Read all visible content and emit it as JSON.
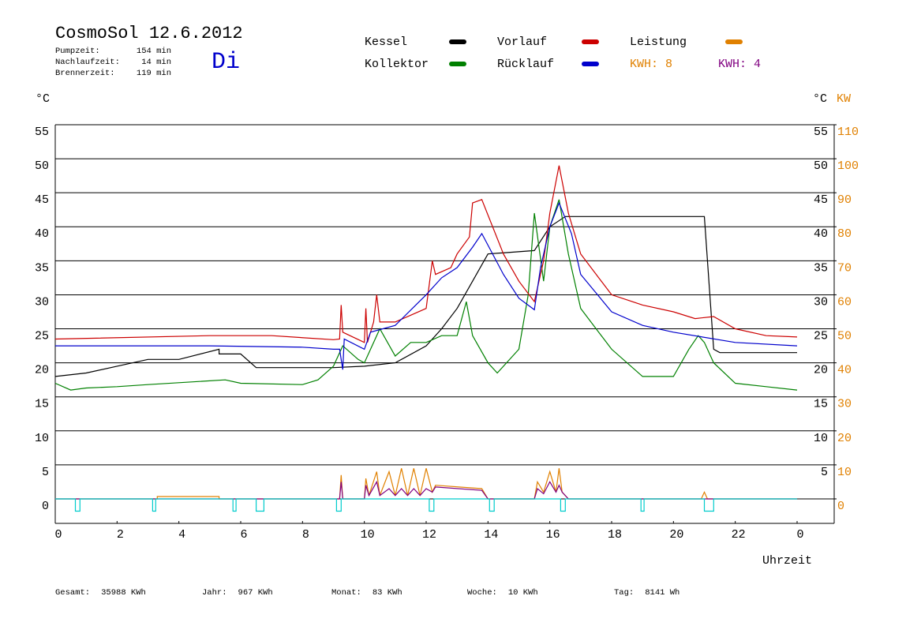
{
  "chart_data": {
    "type": "line",
    "title": "CosmoSol 12.6.2012",
    "info": [
      {
        "label": "Pumpzeit:",
        "value": "154 min"
      },
      {
        "label": "Nachlaufzeit:",
        "value": "14 min"
      },
      {
        "label": "Brennerzeit:",
        "value": "119 min"
      }
    ],
    "day": "Di",
    "y_unit": "°C",
    "y2_unit_c": "°C",
    "y2_unit": "KW",
    "x_label": "Uhrzeit",
    "kwh_labels": [
      {
        "text": "KWH: 8",
        "color": "#e08000"
      },
      {
        "text": "KWH: 4",
        "color": "#800080"
      }
    ],
    "xlim": [
      0,
      25.2
    ],
    "xticks": [
      0,
      2,
      4,
      6,
      8,
      10,
      12,
      14,
      16,
      18,
      20,
      22,
      {
        "value": 24,
        "label": "0"
      }
    ],
    "ylim": [
      -3.6,
      55
    ],
    "yticks": [
      0,
      5,
      10,
      15,
      20,
      25,
      30,
      35,
      40,
      45,
      50,
      55
    ],
    "y2ticks_c": [
      5,
      10,
      15,
      20,
      25,
      30,
      35,
      40,
      45,
      50,
      55
    ],
    "y2lim": [
      -7.2,
      110
    ],
    "y2ticks": [
      0,
      10,
      20,
      30,
      40,
      50,
      60,
      70,
      80,
      90,
      100,
      110
    ],
    "series": [
      {
        "name": "Kessel",
        "color": "#000000",
        "x": [
          0,
          1,
          2,
          3,
          4,
          5.3,
          5.3,
          6,
          6.5,
          9,
          10,
          11,
          12,
          12.5,
          13,
          13.5,
          14,
          15.5,
          16,
          16.5,
          21,
          21.3,
          21.5,
          24
        ],
        "values": [
          18,
          18.5,
          19.5,
          20.5,
          20.5,
          22,
          21.3,
          21.3,
          19.3,
          19.3,
          19.5,
          20,
          22.5,
          25,
          28,
          32,
          36,
          36.5,
          40,
          41.5,
          41.5,
          22,
          21.5,
          21.5
        ]
      },
      {
        "name": "Kollektor",
        "color": "#008000",
        "x": [
          0,
          0.5,
          1,
          2,
          3,
          5.5,
          6,
          8,
          8.5,
          9,
          9.3,
          9.8,
          10,
          10.5,
          11,
          11.5,
          12,
          12.5,
          13,
          13.3,
          13.5,
          14,
          14.3,
          15,
          15.3,
          15.5,
          15.8,
          16,
          16.3,
          16.6,
          17,
          18,
          19,
          20,
          20.5,
          20.8,
          21,
          21.3,
          22,
          23,
          24
        ],
        "values": [
          17,
          16,
          16.3,
          16.5,
          16.8,
          17.5,
          17,
          16.8,
          17.5,
          19.5,
          22.5,
          20.5,
          20,
          25,
          21,
          23,
          23,
          24,
          24,
          29,
          24,
          20,
          18.5,
          22,
          30,
          42,
          32,
          40,
          44,
          36,
          28,
          22,
          18,
          18,
          22,
          24,
          23,
          20,
          17,
          16.5,
          16
        ]
      },
      {
        "name": "Vorlauf",
        "color": "#cc0000",
        "x": [
          0,
          5,
          7,
          9,
          9.2,
          9.25,
          9.3,
          10,
          10.05,
          10.1,
          10.3,
          10.4,
          10.5,
          11,
          11.5,
          12,
          12.2,
          12.3,
          12.8,
          13,
          13.4,
          13.5,
          13.8,
          14.5,
          15,
          15.5,
          15.8,
          16,
          16.3,
          16.6,
          17,
          18,
          19,
          20,
          20.7,
          21.3,
          22,
          23,
          24
        ],
        "values": [
          23.5,
          24,
          24,
          23.4,
          23.5,
          28.5,
          24.5,
          23,
          28,
          23,
          26,
          30,
          26,
          26,
          27,
          28,
          35,
          33,
          34,
          36,
          38.5,
          43.5,
          44,
          36,
          32,
          29,
          35,
          42,
          49,
          42,
          36,
          30,
          28.5,
          27.5,
          26.5,
          26.8,
          25,
          24,
          23.8
        ]
      },
      {
        "name": "Rücklauf",
        "color": "#0000cc",
        "x": [
          0,
          5,
          8,
          9,
          9.2,
          9.3,
          9.35,
          10,
          10.2,
          11,
          12,
          12.5,
          13,
          13.5,
          13.8,
          14.5,
          15,
          15.5,
          15.7,
          16,
          16.3,
          16.7,
          17,
          18,
          19,
          20,
          22,
          24
        ],
        "values": [
          22.5,
          22.5,
          22.3,
          22,
          22,
          19,
          23.5,
          22,
          24.5,
          25.5,
          30,
          32.5,
          34,
          37,
          39,
          33,
          29.5,
          27.8,
          34,
          40,
          43.5,
          39,
          33,
          27.5,
          25.5,
          24.5,
          23,
          22.5
        ]
      },
      {
        "name": "Leistung",
        "color": "#e08000",
        "axis": "y2",
        "x": [
          0,
          3.3,
          3.3,
          5.3,
          5.3,
          9.2,
          9.25,
          9.3,
          10,
          10.05,
          10.15,
          10.4,
          10.5,
          10.8,
          11,
          11.2,
          11.4,
          11.6,
          11.8,
          12,
          12.2,
          12.3,
          13.8,
          14,
          15.5,
          15.6,
          15.8,
          16,
          16.2,
          16.3,
          16.4,
          16.6,
          20.9,
          21,
          21.1,
          24
        ],
        "values": [
          0,
          0,
          0.7,
          0.7,
          0,
          0,
          7,
          0,
          0,
          6,
          1,
          8,
          1,
          8,
          1,
          9,
          1,
          9,
          1,
          9,
          2,
          4,
          3,
          0,
          0,
          5,
          2,
          8,
          2,
          9,
          2,
          0,
          0,
          2,
          0,
          0
        ]
      },
      {
        "color": "#800080",
        "axis": "y2",
        "x": [
          0,
          9.2,
          9.25,
          9.3,
          10,
          10.05,
          10.15,
          10.4,
          10.5,
          10.8,
          11,
          11.2,
          11.4,
          11.6,
          11.8,
          12,
          12.2,
          12.3,
          13.8,
          14,
          15.5,
          15.6,
          15.8,
          16,
          16.2,
          16.3,
          16.4,
          16.6,
          24
        ],
        "values": [
          0,
          0,
          5,
          0,
          0,
          4,
          1,
          5,
          1,
          3,
          1,
          3,
          1,
          3,
          1,
          3,
          2,
          3.5,
          2.5,
          0,
          0,
          3,
          1.5,
          5,
          2,
          4,
          2,
          0,
          0
        ]
      },
      {
        "color": "#00cccc",
        "x": [
          0,
          0.65,
          0.65,
          0.8,
          0.8,
          3.15,
          3.15,
          3.25,
          3.25,
          5.75,
          5.75,
          5.85,
          5.85,
          6.5,
          6.5,
          6.75,
          6.75,
          9.1,
          9.1,
          9.25,
          9.25,
          12.1,
          12.1,
          12.25,
          12.25,
          14.05,
          14.05,
          14.2,
          14.2,
          16.35,
          16.35,
          16.5,
          16.5,
          18.95,
          18.95,
          19.05,
          19.05,
          21.0,
          21.0,
          21.3,
          21.3,
          24
        ],
        "values": [
          0,
          0,
          -1.8,
          -1.8,
          0,
          0,
          -1.8,
          -1.8,
          0,
          0,
          -1.8,
          -1.8,
          0,
          0,
          -1.8,
          -1.8,
          0,
          0,
          -1.8,
          -1.8,
          0,
          0,
          -1.8,
          -1.8,
          0,
          0,
          -1.8,
          -1.8,
          0,
          0,
          -1.8,
          -1.8,
          0,
          0,
          -1.8,
          -1.8,
          0,
          0,
          -1.8,
          -1.8,
          0,
          0
        ]
      }
    ],
    "totals": [
      {
        "label": "Gesamt:",
        "value": "35988 KWh"
      },
      {
        "label": "Jahr:",
        "value": "967 KWh"
      },
      {
        "label": "Monat:",
        "value": "83 KWh"
      },
      {
        "label": "Woche:",
        "value": "10 KWh"
      },
      {
        "label": "Tag:",
        "value": "8141 Wh"
      }
    ]
  }
}
